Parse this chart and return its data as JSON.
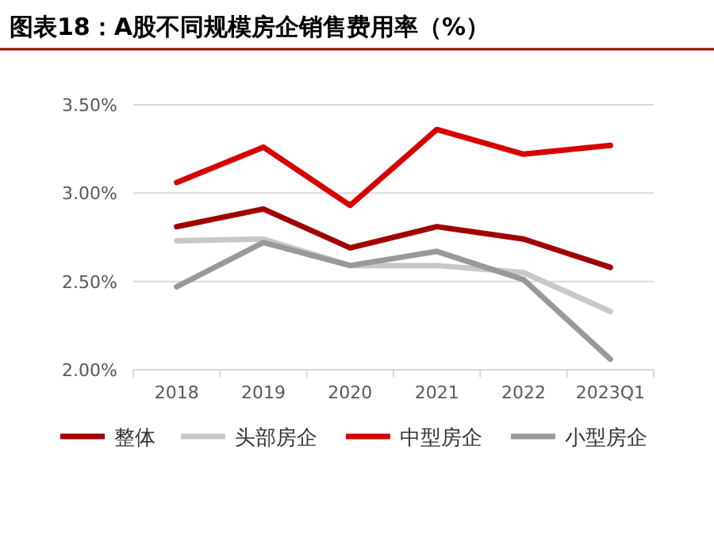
{
  "chart_data": {
    "type": "line",
    "title": "图表18：A股不同规模房企销售费用率（%）",
    "categories": [
      "2018",
      "2019",
      "2020",
      "2021",
      "2022",
      "2023Q1"
    ],
    "series": [
      {
        "name": "整体",
        "color": "#a00000",
        "values": [
          2.81,
          2.91,
          2.69,
          2.81,
          2.74,
          2.58
        ]
      },
      {
        "name": "头部房企",
        "color": "#c8c8c8",
        "values": [
          2.73,
          2.74,
          2.59,
          2.59,
          2.55,
          2.33
        ]
      },
      {
        "name": "中型房企",
        "color": "#d70000",
        "values": [
          3.06,
          3.26,
          2.93,
          3.36,
          3.22,
          3.27
        ]
      },
      {
        "name": "小型房企",
        "color": "#999999",
        "values": [
          2.47,
          2.72,
          2.59,
          2.67,
          2.51,
          2.06
        ]
      }
    ],
    "ylim": [
      2.0,
      3.5
    ],
    "yticks": [
      {
        "value": 2.0,
        "label": "2.00%"
      },
      {
        "value": 2.5,
        "label": "2.50%"
      },
      {
        "value": 3.0,
        "label": "3.00%"
      },
      {
        "value": 3.5,
        "label": "3.50%"
      }
    ],
    "grid": "y",
    "legend": "bottom",
    "marker": "none",
    "line_style": "solid"
  }
}
